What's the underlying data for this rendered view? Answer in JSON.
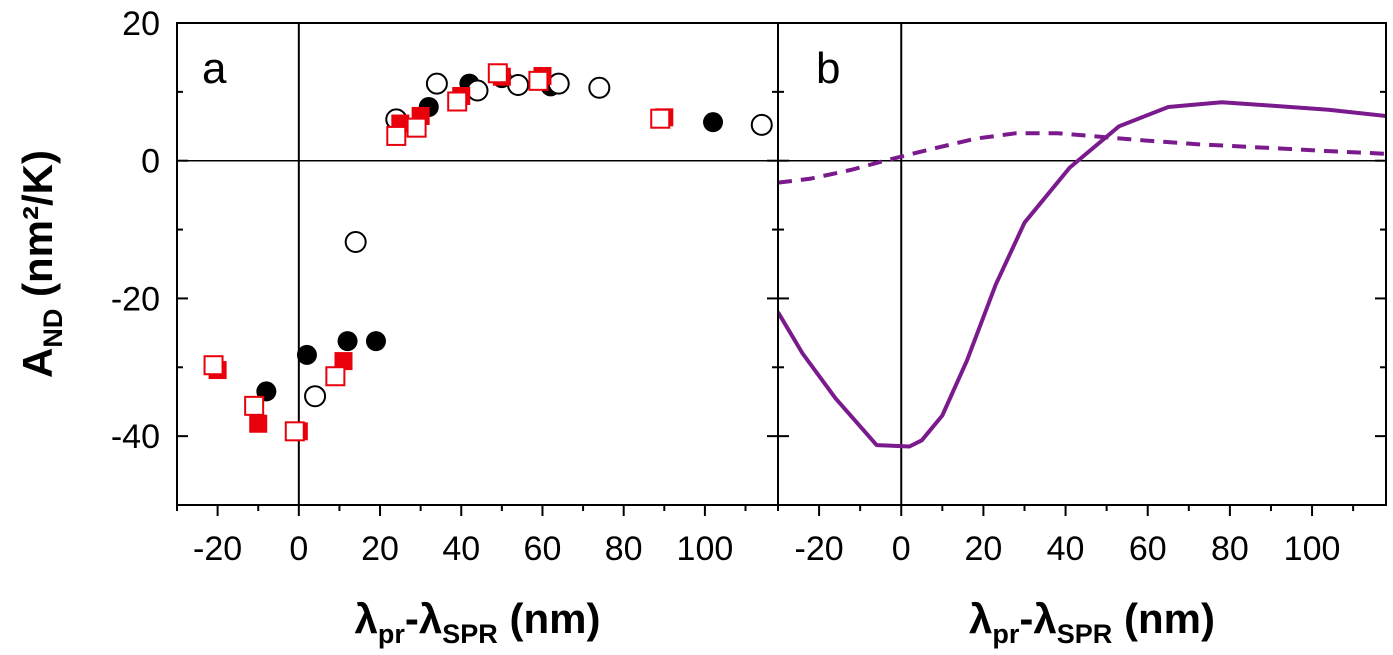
{
  "chart_data": [
    {
      "type": "scatter",
      "panel_label": "a",
      "xlabel": {
        "main": "λ",
        "sub1": "pr",
        "mid": "-λ",
        "sub2": "SPR",
        "unit": " (nm)"
      },
      "ylabel": {
        "main": "A",
        "sub": "ND",
        "unit": " (nm²/K)"
      },
      "xlim": [
        -30,
        118
      ],
      "ylim": [
        -50,
        20
      ],
      "x_ticks": [
        "-20",
        "0",
        "20",
        "40",
        "60",
        "80",
        "100"
      ],
      "y_ticks": [
        "20",
        "0",
        "-20",
        "-40"
      ],
      "reference_lines": {
        "x": 0,
        "y": 0
      },
      "series": [
        {
          "marker": "filled-circle",
          "color": "#000000",
          "points": [
            [
              -8,
              -33.5
            ],
            [
              2,
              -28.2
            ],
            [
              12,
              -26.2
            ],
            [
              19,
              -26.2
            ],
            [
              32,
              7.8
            ],
            [
              42,
              11.2
            ],
            [
              50,
              12
            ],
            [
              62,
              10.8
            ],
            [
              102,
              5.6
            ]
          ]
        },
        {
          "marker": "open-circle",
          "color": "#000000",
          "points": [
            [
              4,
              -34.2
            ],
            [
              14,
              -11.8
            ],
            [
              24,
              6
            ],
            [
              34,
              11.2
            ],
            [
              44,
              10.2
            ],
            [
              54,
              11
            ],
            [
              64,
              11.2
            ],
            [
              74,
              10.6
            ],
            [
              114,
              5.2
            ]
          ]
        },
        {
          "marker": "filled-square",
          "color": "#e8000b",
          "points": [
            [
              -20,
              -30.4
            ],
            [
              -10,
              -38.2
            ],
            [
              0,
              -39.3
            ],
            [
              11,
              -29.1
            ],
            [
              25,
              5.4
            ],
            [
              30,
              6.5
            ],
            [
              40,
              9.4
            ],
            [
              50,
              12.2
            ],
            [
              60,
              12.3
            ],
            [
              90,
              6.3
            ]
          ]
        },
        {
          "marker": "open-square",
          "color": "#e8000b",
          "points": [
            [
              -21,
              -29.7
            ],
            [
              -11,
              -35.6
            ],
            [
              -1,
              -39.3
            ],
            [
              9,
              -31.3
            ],
            [
              24,
              3.6
            ],
            [
              29,
              4.8
            ],
            [
              39,
              8.6
            ],
            [
              49,
              12.7
            ],
            [
              59,
              11.6
            ],
            [
              89,
              6.1
            ]
          ]
        }
      ]
    },
    {
      "type": "line",
      "panel_label": "b",
      "xlabel": {
        "main": "λ",
        "sub1": "pr",
        "mid": "-λ",
        "sub2": "SPR",
        "unit": " (nm)"
      },
      "xlim": [
        -30,
        118
      ],
      "ylim": [
        -50,
        20
      ],
      "x_ticks": [
        "-20",
        "0",
        "20",
        "40",
        "60",
        "80",
        "100"
      ],
      "reference_lines": {
        "x": 0,
        "y": 0
      },
      "color": "#7a1a8c",
      "series": [
        {
          "style": "solid",
          "points": [
            [
              -30,
              -22
            ],
            [
              -24,
              -28
            ],
            [
              -16,
              -34.5
            ],
            [
              -6,
              -41.3
            ],
            [
              2,
              -41.5
            ],
            [
              5,
              -40.6
            ],
            [
              10,
              -37
            ],
            [
              16,
              -29
            ],
            [
              23,
              -18
            ],
            [
              30,
              -9
            ],
            [
              41,
              -1
            ],
            [
              53,
              5
            ],
            [
              65,
              7.8
            ],
            [
              78,
              8.5
            ],
            [
              90,
              8
            ],
            [
              104,
              7.4
            ],
            [
              118,
              6.5
            ]
          ]
        },
        {
          "style": "dashed",
          "points": [
            [
              -30,
              -3.2
            ],
            [
              -22,
              -2.6
            ],
            [
              -12,
              -1.3
            ],
            [
              -4,
              0
            ],
            [
              6,
              1.5
            ],
            [
              18,
              3.2
            ],
            [
              28,
              4
            ],
            [
              38,
              4
            ],
            [
              46,
              3.6
            ],
            [
              58,
              3
            ],
            [
              72,
              2.4
            ],
            [
              88,
              1.9
            ],
            [
              104,
              1.4
            ],
            [
              118,
              1.0
            ]
          ]
        }
      ]
    }
  ]
}
